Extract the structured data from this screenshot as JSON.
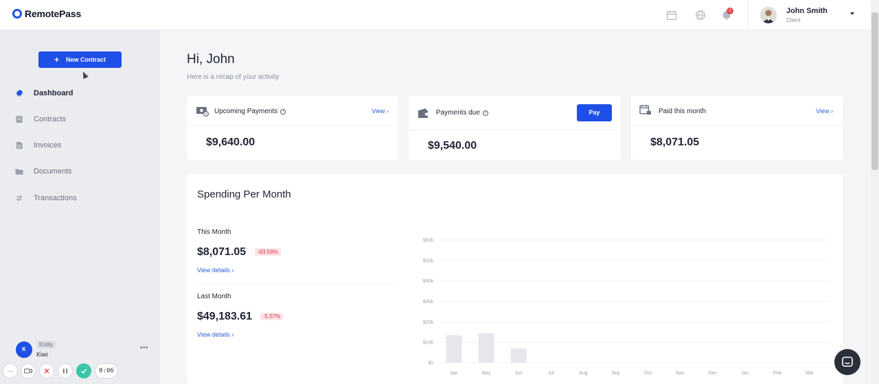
{
  "brand": {
    "name": "RemotePass"
  },
  "user": {
    "name": "John Smith",
    "role": "Client",
    "notifications": "1"
  },
  "sidebar": {
    "new_contract_label": "New Contract",
    "items": [
      {
        "label": "Dashboard",
        "icon": "pie-chart-icon",
        "active": true
      },
      {
        "label": "Contracts",
        "icon": "contract-icon",
        "active": false
      },
      {
        "label": "Invoices",
        "icon": "invoice-icon",
        "active": false
      },
      {
        "label": "Documents",
        "icon": "folder-icon",
        "active": false
      },
      {
        "label": "Transactions",
        "icon": "transactions-icon",
        "active": false
      }
    ],
    "entity": {
      "initial": "K",
      "tag": "Entity",
      "name": "Kiwi"
    }
  },
  "recorder": {
    "timer": "0:06"
  },
  "main": {
    "greeting": "Hi, John",
    "subtitle": "Here is a recap of your activity",
    "cards": [
      {
        "title": "Upcoming Payments",
        "link": "View ›",
        "amount": "$9,640.00"
      },
      {
        "title": "Payments due",
        "button": "Pay",
        "amount": "$9,540.00"
      },
      {
        "title": "Paid this month",
        "link": "View ›",
        "amount": "$8,071.05"
      }
    ],
    "spending": {
      "title": "Spending Per Month",
      "this_month": {
        "label": "This Month",
        "amount": "$8,071.05",
        "change": "-83.59%",
        "link": "View details ›"
      },
      "last_month": {
        "label": "Last Month",
        "amount": "$49,183.61",
        "change": "-5.57%",
        "link": "View details ›"
      }
    }
  },
  "colors": {
    "accent": "#1e4fe6",
    "negative": "#d8334a",
    "bar": "#e6e7ea"
  },
  "chart_data": {
    "type": "bar",
    "categories": [
      "Apr",
      "May",
      "Jun",
      "Jul",
      "Aug",
      "Sep",
      "Oct",
      "Nov",
      "Dec",
      "Jan",
      "Feb",
      "Mar"
    ],
    "values": [
      13500,
      14500,
      7000,
      0,
      0,
      0,
      0,
      0,
      0,
      0,
      0,
      0
    ],
    "ylim": [
      0,
      60000
    ],
    "yticks": [
      "$0",
      "$10k",
      "$20k",
      "$30k",
      "$40k",
      "$50k",
      "$60k"
    ],
    "grid": true,
    "xlabel": "",
    "ylabel": ""
  }
}
